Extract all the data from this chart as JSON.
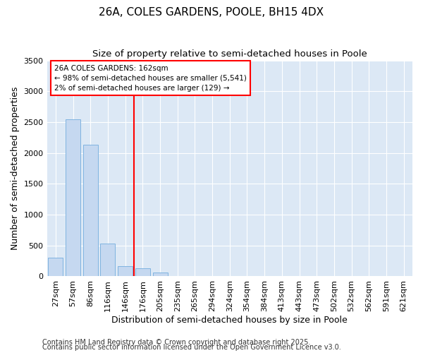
{
  "title": "26A, COLES GARDENS, POOLE, BH15 4DX",
  "subtitle": "Size of property relative to semi-detached houses in Poole",
  "xlabel": "Distribution of semi-detached houses by size in Poole",
  "ylabel": "Number of semi-detached properties",
  "categories": [
    "27sqm",
    "57sqm",
    "86sqm",
    "116sqm",
    "146sqm",
    "176sqm",
    "205sqm",
    "235sqm",
    "265sqm",
    "294sqm",
    "324sqm",
    "354sqm",
    "384sqm",
    "413sqm",
    "443sqm",
    "473sqm",
    "502sqm",
    "532sqm",
    "562sqm",
    "591sqm",
    "621sqm"
  ],
  "values": [
    300,
    2540,
    2130,
    530,
    160,
    130,
    60,
    0,
    0,
    0,
    0,
    0,
    0,
    0,
    0,
    0,
    0,
    0,
    0,
    0,
    0
  ],
  "bar_color": "#c5d8f0",
  "bar_edge_color": "#7fb3e0",
  "ylim": [
    0,
    3500
  ],
  "yticks": [
    0,
    500,
    1000,
    1500,
    2000,
    2500,
    3000,
    3500
  ],
  "vline_x": 4.5,
  "vline_color": "red",
  "ann_title": "26A COLES GARDENS: 162sqm",
  "ann_line2": "← 98% of semi-detached houses are smaller (5,541)",
  "ann_line3": "2% of semi-detached houses are larger (129) →",
  "footnote1": "Contains HM Land Registry data © Crown copyright and database right 2025.",
  "footnote2": "Contains public sector information licensed under the Open Government Licence v3.0.",
  "bg_color": "#dce8f5",
  "grid_color": "#ffffff",
  "title_fontsize": 11,
  "subtitle_fontsize": 9.5,
  "axis_label_fontsize": 9,
  "tick_fontsize": 8,
  "footnote_fontsize": 7
}
